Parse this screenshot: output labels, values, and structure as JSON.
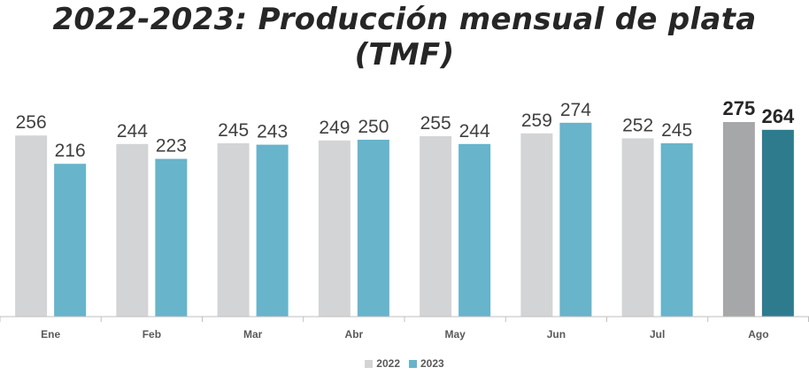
{
  "chart_data": {
    "type": "bar",
    "title": "2022-2023: Producción mensual de plata (TMF)",
    "categories": [
      "Ene",
      "Feb",
      "Mar",
      "Abr",
      "May",
      "Jun",
      "Jul",
      "Ago"
    ],
    "series": [
      {
        "name": "2022",
        "values": [
          256,
          244,
          245,
          249,
          255,
          259,
          252,
          275
        ],
        "labels": [
          "256",
          "244",
          "245",
          "249",
          "255",
          "259",
          "252",
          "275"
        ],
        "color": "#D3D4D6",
        "highlight_color": "#A6A7A9"
      },
      {
        "name": "2023",
        "values": [
          216,
          223,
          243,
          250,
          244,
          274,
          245,
          264
        ],
        "labels": [
          "216",
          "223",
          "243",
          "250",
          "244",
          "274",
          "245",
          "264"
        ],
        "color": "#67B4CB",
        "highlight_color": "#2E7B8E"
      }
    ],
    "highlight_category": "Ago",
    "xlabel": "",
    "ylabel": "",
    "ylim": [
      0,
      300
    ],
    "grid": false,
    "legend_position": "bottom-center"
  }
}
